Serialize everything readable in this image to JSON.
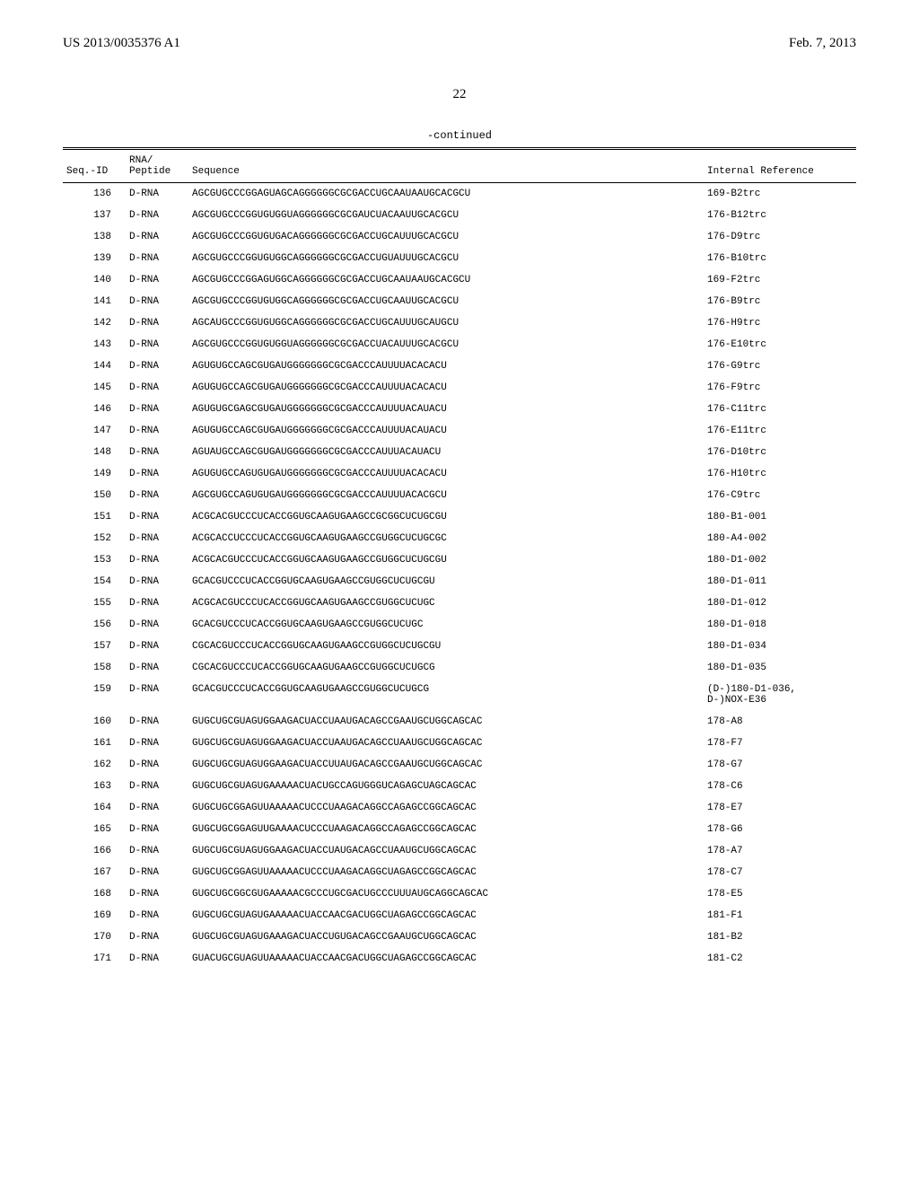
{
  "header": {
    "pub_number": "US 2013/0035376 A1",
    "pub_date": "Feb. 7, 2013"
  },
  "page_number": "22",
  "continued_label": "-continued",
  "columns": {
    "seq_id": "Seq.-ID",
    "rna_peptide_line1": "RNA/",
    "rna_peptide_line2": "Peptide",
    "sequence": "Sequence",
    "internal_ref": "Internal Reference"
  },
  "rows": [
    {
      "seq_id": "136",
      "rna": "D-RNA",
      "sequence": "AGCGUGCCCGGAGUAGCAGGGGGGCGCGACCUGCAAUAAUGCACGCU",
      "ref": "169-B2trc"
    },
    {
      "seq_id": "137",
      "rna": "D-RNA",
      "sequence": "AGCGUGCCCGGUGUGGUAGGGGGGCGCGAUCUACAAUUGCACGCU",
      "ref": "176-B12trc"
    },
    {
      "seq_id": "138",
      "rna": "D-RNA",
      "sequence": "AGCGUGCCCGGUGUGACAGGGGGGCGCGACCUGCAUUUGCACGCU",
      "ref": "176-D9trc"
    },
    {
      "seq_id": "139",
      "rna": "D-RNA",
      "sequence": "AGCGUGCCCGGUGUGGCAGGGGGGCGCGACCUGUAUUUGCACGCU",
      "ref": "176-B10trc"
    },
    {
      "seq_id": "140",
      "rna": "D-RNA",
      "sequence": "AGCGUGCCCGGAGUGGCAGGGGGGCGCGACCUGCAAUAAUGCACGCU",
      "ref": "169-F2trc"
    },
    {
      "seq_id": "141",
      "rna": "D-RNA",
      "sequence": "AGCGUGCCCGGUGUGGCAGGGGGGCGCGACCUGCAAUUGCACGCU",
      "ref": "176-B9trc"
    },
    {
      "seq_id": "142",
      "rna": "D-RNA",
      "sequence": "AGCAUGCCCGGUGUGGCAGGGGGGCGCGACCUGCAUUUGCAUGCU",
      "ref": "176-H9trc"
    },
    {
      "seq_id": "143",
      "rna": "D-RNA",
      "sequence": "AGCGUGCCCGGUGUGGUAGGGGGGCGCGACCUACAUUUGCACGCU",
      "ref": "176-E10trc"
    },
    {
      "seq_id": "144",
      "rna": "D-RNA",
      "sequence": "AGUGUGCCAGCGUGAUGGGGGGGCGCGACCCAUUUUACACACU",
      "ref": "176-G9trc"
    },
    {
      "seq_id": "145",
      "rna": "D-RNA",
      "sequence": "AGUGUGCCAGCGUGAUGGGGGGGCGCGACCCAUUUUACACACU",
      "ref": "176-F9trc"
    },
    {
      "seq_id": "146",
      "rna": "D-RNA",
      "sequence": "AGUGUGCGAGCGUGAUGGGGGGGCGCGACCCAUUUUACAUACU",
      "ref": "176-C11trc"
    },
    {
      "seq_id": "147",
      "rna": "D-RNA",
      "sequence": "AGUGUGCCAGCGUGAUGGGGGGGCGCGACCCAUUUUACAUACU",
      "ref": "176-E11trc"
    },
    {
      "seq_id": "148",
      "rna": "D-RNA",
      "sequence": "AGUAUGCCAGCGUGAUGGGGGGGCGCGACCCAUUUACAUACU",
      "ref": "176-D10trc"
    },
    {
      "seq_id": "149",
      "rna": "D-RNA",
      "sequence": "AGUGUGCCAGUGUGAUGGGGGGGCGCGACCCAUUUUACACACU",
      "ref": "176-H10trc"
    },
    {
      "seq_id": "150",
      "rna": "D-RNA",
      "sequence": "AGCGUGCCAGUGUGAUGGGGGGGCGCGACCCAUUUUACACGCU",
      "ref": "176-C9trc"
    },
    {
      "seq_id": "151",
      "rna": "D-RNA",
      "sequence": "ACGCACGUCCCUCACCGGUGCAAGUGAAGCCGCGGCUCUGCGU",
      "ref": "180-B1-001"
    },
    {
      "seq_id": "152",
      "rna": "D-RNA",
      "sequence": "ACGCACCUCCCUCACCGGUGCAAGUGAAGCCGUGGCUCUGCGC",
      "ref": "180-A4-002"
    },
    {
      "seq_id": "153",
      "rna": "D-RNA",
      "sequence": "ACGCACGUCCCUCACCGGUGCAAGUGAAGCCGUGGCUCUGCGU",
      "ref": "180-D1-002"
    },
    {
      "seq_id": "154",
      "rna": "D-RNA",
      "sequence": "GCACGUCCCUCACCGGUGCAAGUGAAGCCGUGGCUCUGCGU",
      "ref": "180-D1-011"
    },
    {
      "seq_id": "155",
      "rna": "D-RNA",
      "sequence": "ACGCACGUCCCUCACCGGUGCAAGUGAAGCCGUGGCUCUGC",
      "ref": "180-D1-012"
    },
    {
      "seq_id": "156",
      "rna": "D-RNA",
      "sequence": "GCACGUCCCUCACCGGUGCAAGUGAAGCCGUGGCUCUGC",
      "ref": "180-D1-018"
    },
    {
      "seq_id": "157",
      "rna": "D-RNA",
      "sequence": "CGCACGUCCCUCACCGGUGCAAGUGAAGCCGUGGCUCUGCGU",
      "ref": "180-D1-034"
    },
    {
      "seq_id": "158",
      "rna": "D-RNA",
      "sequence": "CGCACGUCCCUCACCGGUGCAAGUGAAGCCGUGGCUCUGCG",
      "ref": "180-D1-035"
    },
    {
      "seq_id": "159",
      "rna": "D-RNA",
      "sequence": "GCACGUCCCUCACCGGUGCAAGUGAAGCCGUGGCUCUGCG",
      "ref": "(D-)180-D1-036,\nD-)NOX-E36"
    },
    {
      "seq_id": "160",
      "rna": "D-RNA",
      "sequence": "GUGCUGCGUAGUGGAAGACUACCUAAUGACAGCCGAAUGCUGGCAGCAC",
      "ref": "178-A8"
    },
    {
      "seq_id": "161",
      "rna": "D-RNA",
      "sequence": "GUGCUGCGUAGUGGAAGACUACCUAAUGACAGCCUAAUGCUGGCAGCAC",
      "ref": "178-F7"
    },
    {
      "seq_id": "162",
      "rna": "D-RNA",
      "sequence": "GUGCUGCGUAGUGGAAGACUACCUUAUGACAGCCGAAUGCUGGCAGCAC",
      "ref": "178-G7"
    },
    {
      "seq_id": "163",
      "rna": "D-RNA",
      "sequence": "GUGCUGCGUAGUGAAAAACUACUGCCAGUGGGUCAGAGCUAGCAGCAC",
      "ref": "178-C6"
    },
    {
      "seq_id": "164",
      "rna": "D-RNA",
      "sequence": "GUGCUGCGGAGUUAAAAACUCCCUAAGACAGGCCAGAGCCGGCAGCAC",
      "ref": "178-E7"
    },
    {
      "seq_id": "165",
      "rna": "D-RNA",
      "sequence": "GUGCUGCGGAGUUGAAAACUCCCUAAGACAGGCCAGAGCCGGCAGCAC",
      "ref": "178-G6"
    },
    {
      "seq_id": "166",
      "rna": "D-RNA",
      "sequence": "GUGCUGCGUAGUGGAAGACUACCUAUGACAGCCUAAUGCUGGCAGCAC",
      "ref": "178-A7"
    },
    {
      "seq_id": "167",
      "rna": "D-RNA",
      "sequence": "GUGCUGCGGAGUUAAAAACUCCCUAAGACAGGCUAGAGCCGGCAGCAC",
      "ref": "178-C7"
    },
    {
      "seq_id": "168",
      "rna": "D-RNA",
      "sequence": "GUGCUGCGGCGUGAAAAACGCCCUGCGACUGCCCUUUAUGCAGGCAGCAC",
      "ref": "178-E5"
    },
    {
      "seq_id": "169",
      "rna": "D-RNA",
      "sequence": "GUGCUGCGUAGUGAAAAACUACCAACGACUGGCUAGAGCCGGCAGCAC",
      "ref": "181-F1"
    },
    {
      "seq_id": "170",
      "rna": "D-RNA",
      "sequence": "GUGCUGCGUAGUGAAAGACUACCUGUGACAGCCGAAUGCUGGCAGCAC",
      "ref": "181-B2"
    },
    {
      "seq_id": "171",
      "rna": "D-RNA",
      "sequence": "GUACUGCGUAGUUAAAAACUACCAACGACUGGCUAGAGCCGGCAGCAC",
      "ref": "181-C2"
    }
  ]
}
